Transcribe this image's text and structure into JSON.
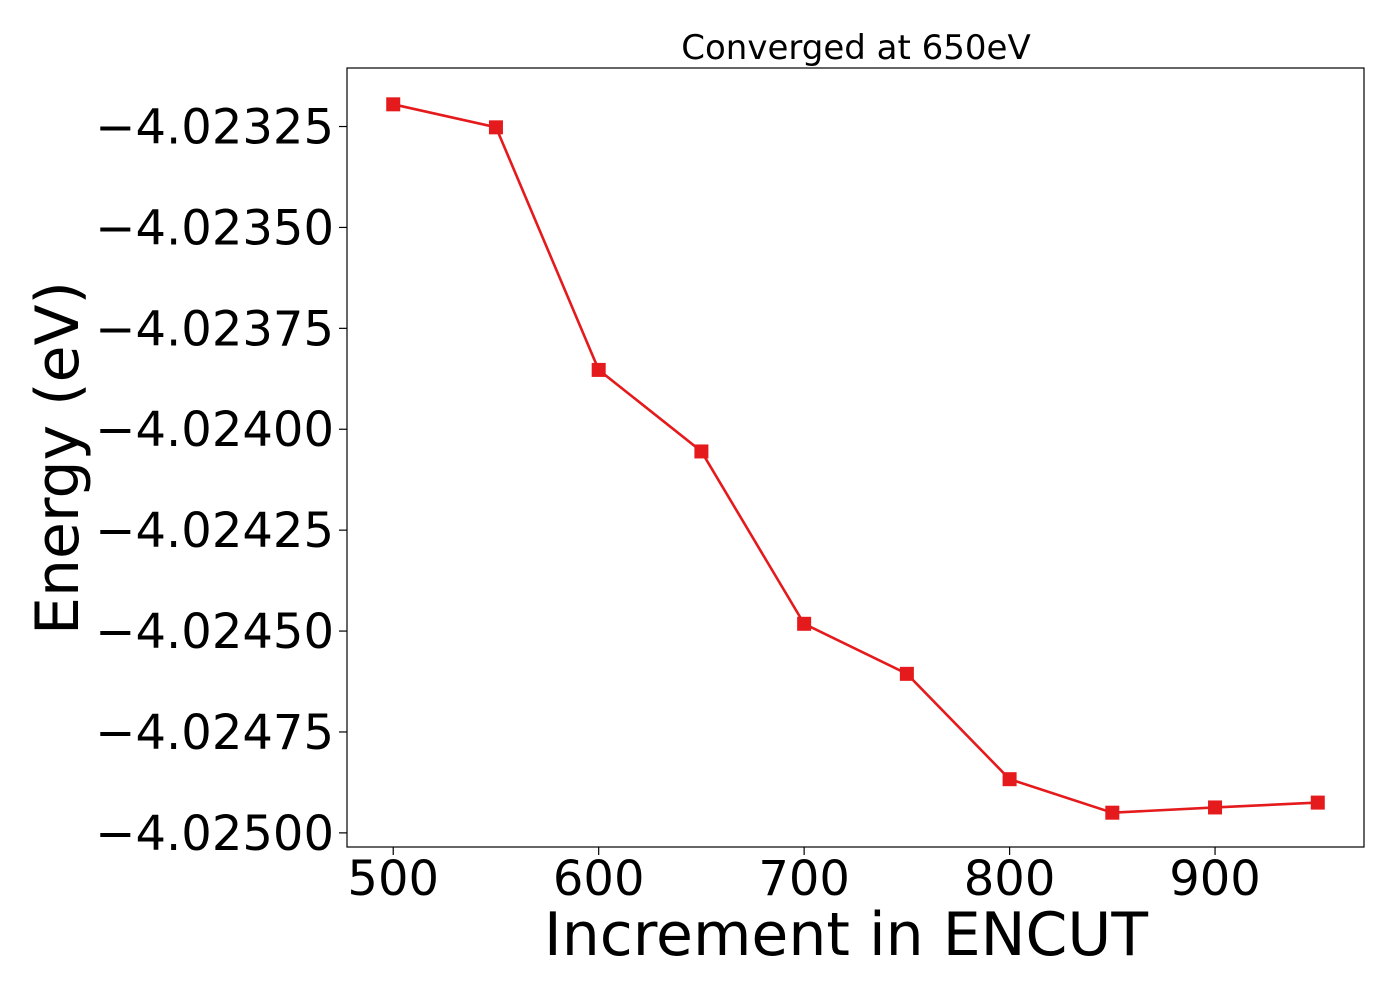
{
  "chart_data": {
    "type": "line",
    "title": "Converged at 650eV",
    "xlabel": "Increment in ENCUT",
    "ylabel": "Energy (eV)",
    "x": [
      500,
      550,
      600,
      650,
      700,
      750,
      800,
      850,
      900,
      950
    ],
    "series": [
      {
        "values": [
          -4.023195,
          -4.023252,
          -4.023853,
          -4.024055,
          -4.024482,
          -4.024606,
          -4.024867,
          -4.02495,
          -4.024937,
          -4.024925
        ],
        "color": "#e41a1c",
        "marker": "square"
      }
    ],
    "xlim": [
      477.5,
      972.5
    ],
    "ylim": [
      -4.025035,
      -4.023105
    ],
    "xticks": [
      500,
      600,
      700,
      800,
      900
    ],
    "xtick_labels": [
      "500",
      "600",
      "700",
      "800",
      "900"
    ],
    "yticks": [
      -4.02325,
      -4.0235,
      -4.02375,
      -4.024,
      -4.02425,
      -4.0245,
      -4.02475,
      -4.025
    ],
    "ytick_labels": [
      "−4.02325",
      "−4.02350",
      "−4.02375",
      "−4.02400",
      "−4.02425",
      "−4.02450",
      "−4.02475",
      "−4.02500"
    ],
    "grid": false,
    "legend": false
  }
}
